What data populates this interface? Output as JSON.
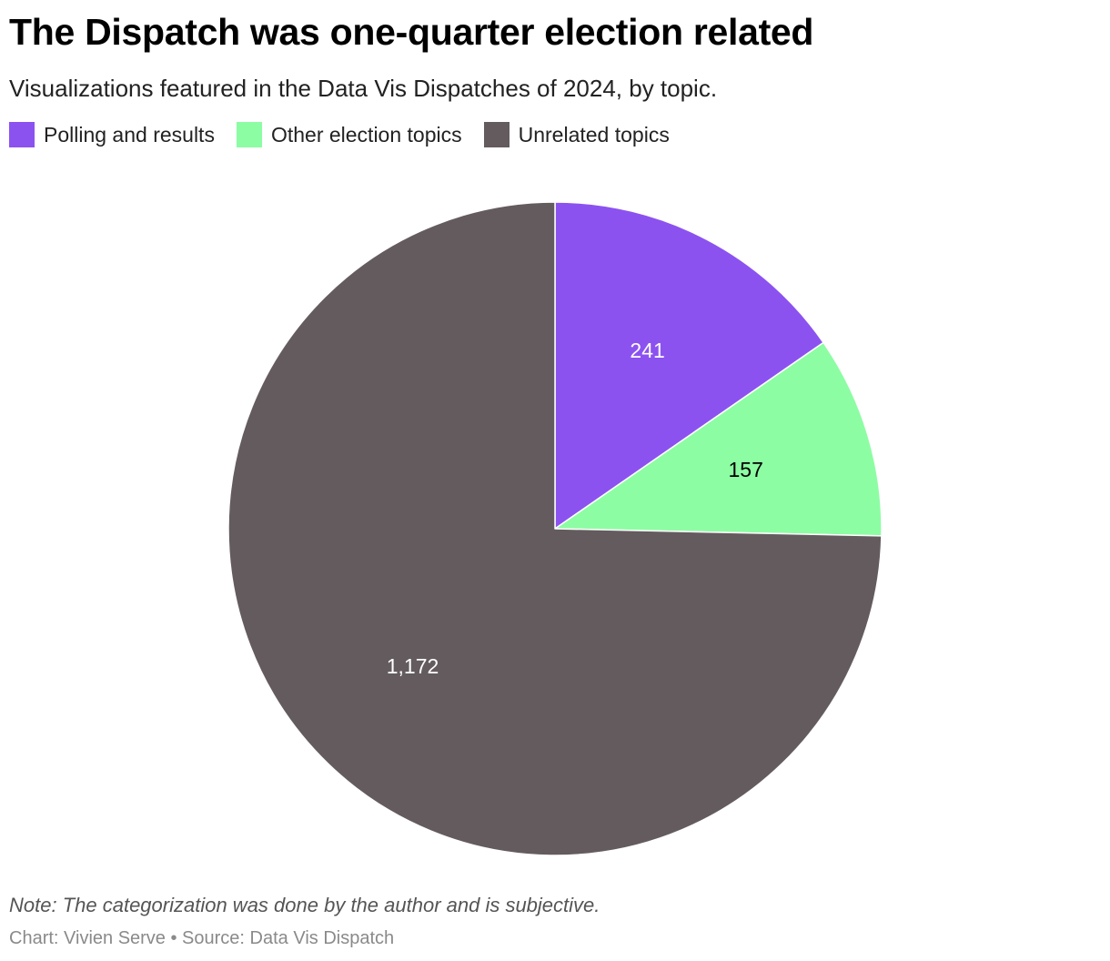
{
  "header": {
    "title": "The Dispatch was one-quarter election related",
    "subtitle": "Visualizations featured in the Data Vis Dispatches of 2024, by topic."
  },
  "legend": {
    "items": [
      {
        "label": "Polling and results",
        "color": "#8c52f0"
      },
      {
        "label": "Other election topics",
        "color": "#8dfda3"
      },
      {
        "label": "Unrelated topics",
        "color": "#645b5f"
      }
    ]
  },
  "chart_data": {
    "type": "pie",
    "title": "The Dispatch was one-quarter election related",
    "subtitle": "Visualizations featured in the Data Vis Dispatches of 2024, by topic.",
    "categories": [
      "Polling and results",
      "Other election topics",
      "Unrelated topics"
    ],
    "values": [
      241,
      157,
      1172
    ],
    "value_labels": [
      "241",
      "157",
      "1,172"
    ],
    "colors": [
      "#8c52f0",
      "#8dfda3",
      "#645b5f"
    ],
    "label_colors": [
      "#ffffff",
      "#000000",
      "#ffffff"
    ],
    "start_angle_deg": 0,
    "direction": "clockwise",
    "legend_position": "top-left"
  },
  "footer": {
    "note": "Note: The categorization was done by the author and is subjective.",
    "credit": "Chart: Vivien Serve • Source: Data Vis Dispatch"
  }
}
